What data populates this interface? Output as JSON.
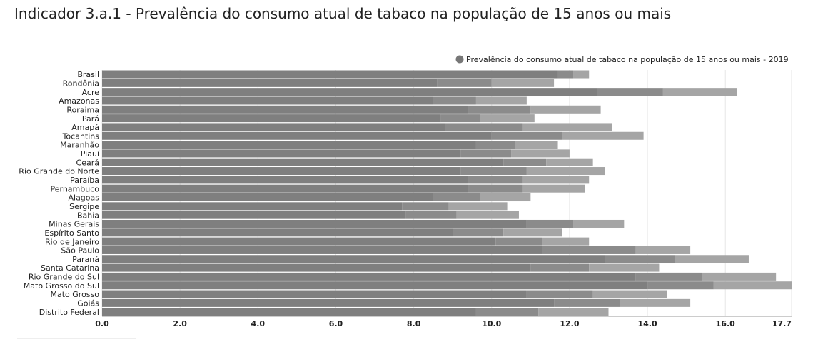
{
  "chart_data": {
    "type": "bar",
    "orientation": "horizontal",
    "title": "Indicador 3.a.1 - Prevalência do consumo atual de tabaco na população de 15 anos ou mais",
    "legend": "Prevalência do consumo atual de tabaco na população de 15 anos ou mais - 2019",
    "legend_color": "#777777",
    "categories": [
      "Brasil",
      "Rondônia",
      "Acre",
      "Amazonas",
      "Roraima",
      "Pará",
      "Amapá",
      "Tocantins",
      "Maranhão",
      "Piauí",
      "Ceará",
      "Rio Grande do Norte",
      "Paraíba",
      "Pernambuco",
      "Alagoas",
      "Sergipe",
      "Bahia",
      "Minas Gerais",
      "Espírito Santo",
      "Rio de Janeiro",
      "São Paulo",
      "Paraná",
      "Santa Catarina",
      "Rio Grande do Sul",
      "Mato Grosso do Sul",
      "Mato Grosso",
      "Goiás",
      "Distrito Federal"
    ],
    "lower": [
      11.7,
      8.6,
      12.7,
      8.5,
      9.4,
      8.7,
      8.8,
      10.0,
      9.6,
      9.2,
      10.3,
      9.2,
      9.4,
      9.4,
      8.5,
      7.7,
      7.8,
      10.9,
      9.0,
      10.1,
      11.3,
      12.9,
      11.0,
      13.7,
      14.0,
      10.9,
      11.6,
      9.6
    ],
    "values": [
      12.1,
      10.0,
      14.4,
      9.6,
      11.0,
      9.7,
      10.8,
      11.8,
      10.6,
      10.5,
      11.4,
      10.9,
      10.8,
      10.8,
      9.7,
      8.9,
      9.1,
      12.1,
      10.3,
      11.3,
      13.7,
      14.7,
      12.5,
      15.4,
      15.7,
      12.6,
      13.3,
      11.2
    ],
    "upper": [
      12.5,
      11.6,
      16.3,
      10.9,
      12.8,
      11.1,
      13.1,
      13.9,
      11.7,
      12.0,
      12.6,
      12.9,
      12.5,
      12.4,
      11.0,
      10.4,
      10.7,
      13.4,
      11.8,
      12.5,
      15.1,
      16.6,
      14.3,
      17.3,
      17.7,
      14.5,
      15.1,
      13.0
    ],
    "colors": {
      "lower": "#7f7f7f",
      "values": "#8b8b8b",
      "upper": "#a5a5a5"
    },
    "xlim": [
      0,
      17.7
    ],
    "xticks": [
      {
        "value": 0,
        "label": "0.0"
      },
      {
        "value": 2,
        "label": "2.0"
      },
      {
        "value": 4,
        "label": "4.0"
      },
      {
        "value": 6,
        "label": "6.0"
      },
      {
        "value": 8,
        "label": "8.0"
      },
      {
        "value": 10,
        "label": "10.0"
      },
      {
        "value": 12,
        "label": "12.0"
      },
      {
        "value": 14,
        "label": "14.0"
      },
      {
        "value": 16,
        "label": "16.0"
      },
      {
        "value": 17.7,
        "label": "17.7"
      }
    ],
    "grid": true
  }
}
